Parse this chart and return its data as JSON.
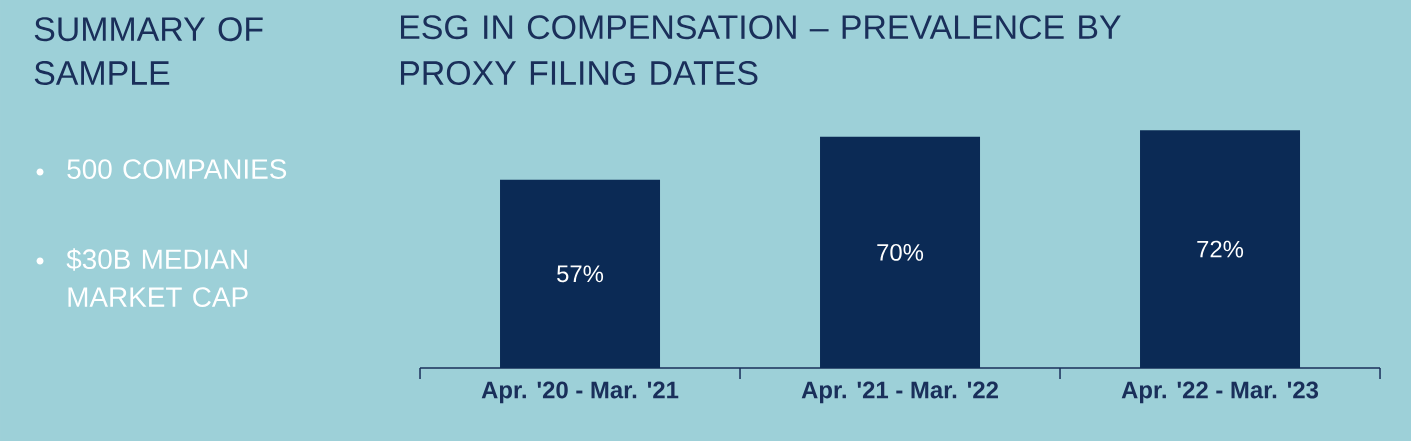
{
  "chart_data": {
    "type": "bar",
    "title": "ESG IN COMPENSATION – PREVALENCE BY PROXY FILING DATES",
    "annotations": [
      "SUMMARY OF SAMPLE",
      "500 COMPANIES",
      "$30B MEDIAN MARKET CAP"
    ],
    "categories": [
      "Apr. '20 - Mar. '21",
      "Apr. '21 - Mar. '22",
      "Apr. '22 - Mar. '23"
    ],
    "values": [
      57,
      70,
      72
    ],
    "value_labels": [
      "57%",
      "70%",
      "72%"
    ],
    "color": "#0b2a55"
  }
}
